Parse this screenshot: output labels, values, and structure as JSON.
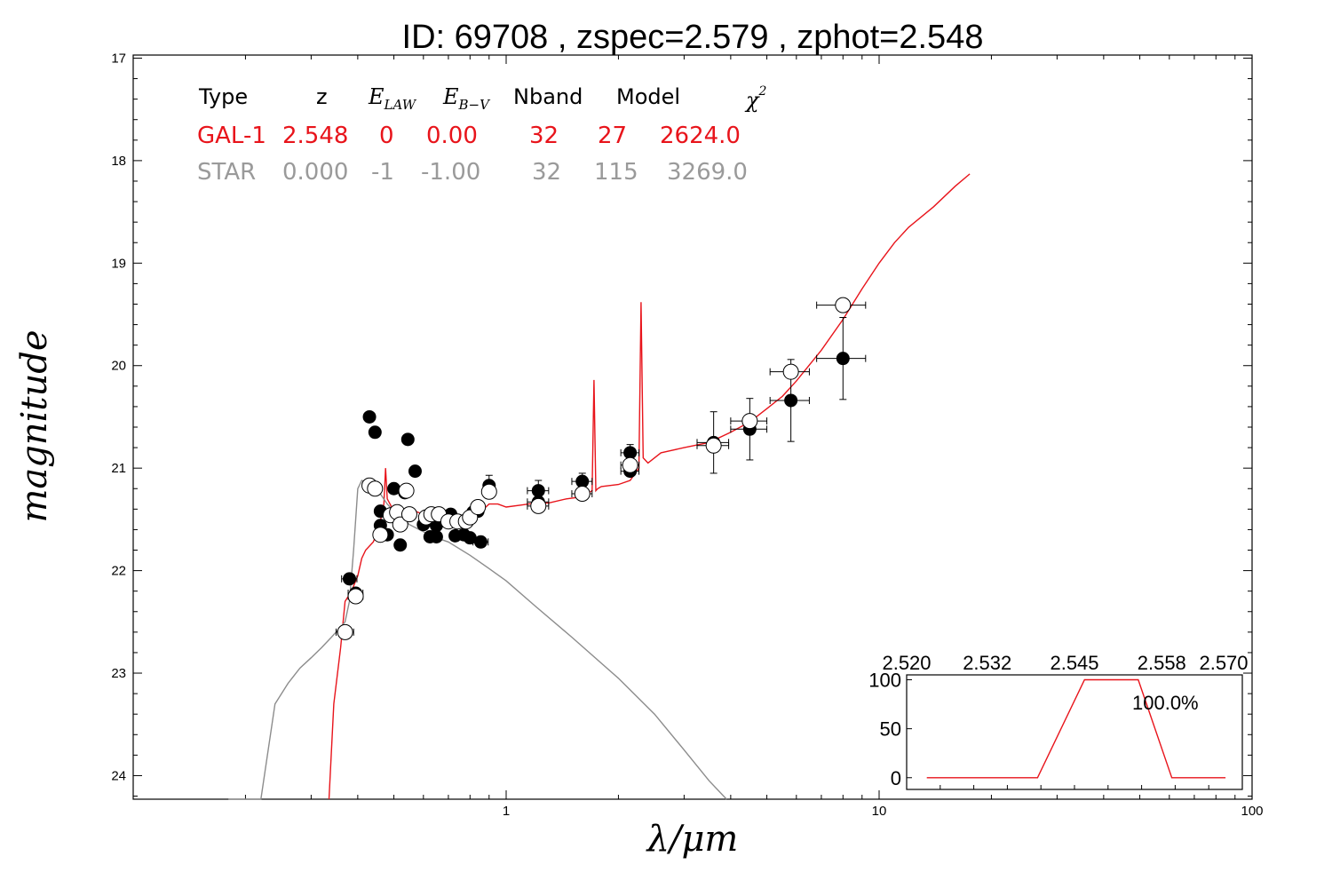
{
  "title": "ID:  69708 , zspec=2.579 , zphot=2.548",
  "colors": {
    "gal": "#e8141b",
    "star": "#8c8c8c",
    "text_gal": "#e8141b",
    "text_star": "#9a9a9a"
  },
  "chart_data": [
    {
      "type": "scatter",
      "xlabel": "λ/μm",
      "ylabel": "magnitude",
      "xscale": "log",
      "xlim": [
        0.1,
        100
      ],
      "ylim": [
        24.23,
        16.97
      ],
      "x_tick_labels": [
        "1",
        "10",
        "100"
      ],
      "y_tick_labels": [
        "17",
        "18",
        "19",
        "20",
        "21",
        "22",
        "23",
        "24"
      ],
      "x_tick_values": [
        1,
        10,
        100
      ],
      "y_tick_values": [
        17,
        18,
        19,
        20,
        21,
        22,
        23,
        24
      ],
      "grid": false,
      "summary_table": {
        "headers": [
          "Type",
          "z",
          "E_LAW",
          "E_B−V",
          "Nband",
          "Model",
          "χ²"
        ],
        "header_math": {
          "e_law_base": "E",
          "e_law_sub": "LAW",
          "ebv_base": "E",
          "ebv_sub": "B−V",
          "chi_base": "χ",
          "chi_sup": "2"
        },
        "rows": [
          {
            "name": "GAL-1",
            "z": "2.548",
            "elaw": "0",
            "ebv": "0.00",
            "nband": "32",
            "model": "27",
            "chi2": "2624.0"
          },
          {
            "name": "STAR",
            "z": "0.000",
            "elaw": "-1",
            "ebv": "-1.00",
            "nband": "32",
            "model": "115",
            "chi2": "3269.0"
          }
        ]
      },
      "series": [
        {
          "name": "GAL-1",
          "kind": "line",
          "color": "#e8141b",
          "x": [
            0.335,
            0.345,
            0.36,
            0.37,
            0.385,
            0.4,
            0.41,
            0.42,
            0.44,
            0.455,
            0.47,
            0.475,
            0.48,
            0.5,
            0.55,
            0.6,
            0.65,
            0.7,
            0.8,
            0.9,
            0.95,
            1.0,
            1.1,
            1.2,
            1.3,
            1.45,
            1.6,
            1.7,
            1.72,
            1.74,
            1.76,
            1.8,
            2.0,
            2.15,
            2.27,
            2.3,
            2.33,
            2.4,
            2.6,
            3.0,
            3.5,
            4.0,
            4.5,
            5.0,
            5.5,
            6.0,
            7.0,
            8.0,
            9.0,
            10.0,
            11.0,
            12.0,
            14.0,
            16.0,
            17.5
          ],
          "y": [
            24.23,
            23.3,
            22.75,
            22.3,
            22.2,
            22.05,
            21.88,
            21.8,
            21.72,
            21.6,
            21.35,
            21.0,
            21.3,
            21.42,
            21.4,
            21.45,
            21.48,
            21.5,
            21.52,
            21.35,
            21.35,
            21.38,
            21.36,
            21.34,
            21.34,
            21.3,
            21.28,
            21.22,
            20.14,
            21.22,
            21.2,
            21.18,
            21.16,
            21.12,
            21.0,
            19.38,
            20.9,
            20.95,
            20.85,
            20.8,
            20.75,
            20.65,
            20.55,
            20.42,
            20.3,
            20.15,
            19.85,
            19.55,
            19.25,
            19.0,
            18.8,
            18.65,
            18.45,
            18.25,
            18.13
          ]
        },
        {
          "name": "STAR",
          "kind": "line",
          "color": "#8c8c8c",
          "x": [
            0.18,
            0.19,
            0.2,
            0.22,
            0.24,
            0.26,
            0.28,
            0.3,
            0.32,
            0.34,
            0.36,
            0.37,
            0.38,
            0.39,
            0.4,
            0.41,
            0.43,
            0.45,
            0.48,
            0.5,
            0.55,
            0.6,
            0.65,
            0.7,
            0.8,
            0.9,
            1.0,
            1.2,
            1.5,
            2.0,
            2.5,
            3.0,
            3.5,
            3.9
          ],
          "y": [
            24.23,
            24.23,
            24.23,
            24.23,
            23.3,
            23.1,
            22.95,
            22.85,
            22.75,
            22.65,
            22.55,
            22.5,
            22.3,
            21.8,
            21.2,
            21.12,
            21.15,
            21.2,
            21.35,
            21.42,
            21.55,
            21.62,
            21.68,
            21.72,
            21.85,
            21.98,
            22.1,
            22.35,
            22.65,
            23.05,
            23.4,
            23.75,
            24.05,
            24.23
          ]
        },
        {
          "name": "observed",
          "kind": "points",
          "marker": "filled-circle",
          "color": "#000000",
          "points": [
            {
              "x": 0.38,
              "y": 22.08,
              "xerr": 0.018,
              "yerr": 0
            },
            {
              "x": 0.395,
              "y": 22.22,
              "xerr": 0.018,
              "yerr": 0
            },
            {
              "x": 0.43,
              "y": 20.5,
              "xerr": 0,
              "yerr": 0
            },
            {
              "x": 0.445,
              "y": 20.65,
              "xerr": 0,
              "yerr": 0
            },
            {
              "x": 0.46,
              "y": 21.42,
              "xerr": 0,
              "yerr": 0
            },
            {
              "x": 0.46,
              "y": 21.56,
              "xerr": 0,
              "yerr": 0
            },
            {
              "x": 0.48,
              "y": 21.65,
              "xerr": 0,
              "yerr": 0
            },
            {
              "x": 0.5,
              "y": 21.2,
              "xerr": 0,
              "yerr": 0
            },
            {
              "x": 0.52,
              "y": 21.75,
              "xerr": 0,
              "yerr": 0
            },
            {
              "x": 0.535,
              "y": 21.24,
              "xerr": 0,
              "yerr": 0
            },
            {
              "x": 0.545,
              "y": 20.72,
              "xerr": 0,
              "yerr": 0
            },
            {
              "x": 0.57,
              "y": 21.03,
              "xerr": 0,
              "yerr": 0
            },
            {
              "x": 0.6,
              "y": 21.55,
              "xerr": 0,
              "yerr": 0
            },
            {
              "x": 0.625,
              "y": 21.67,
              "xerr": 0,
              "yerr": 0
            },
            {
              "x": 0.65,
              "y": 21.67,
              "xerr": 0,
              "yerr": 0
            },
            {
              "x": 0.65,
              "y": 21.56,
              "xerr": 0,
              "yerr": 0
            },
            {
              "x": 0.675,
              "y": 21.47,
              "xerr": 0,
              "yerr": 0
            },
            {
              "x": 0.71,
              "y": 21.45,
              "xerr": 0,
              "yerr": 0
            },
            {
              "x": 0.73,
              "y": 21.66,
              "xerr": 0,
              "yerr": 0
            },
            {
              "x": 0.77,
              "y": 21.65,
              "xerr": 0,
              "yerr": 0
            },
            {
              "x": 0.8,
              "y": 21.68,
              "xerr": 0,
              "yerr": 0
            },
            {
              "x": 0.815,
              "y": 21.43,
              "xerr": 0,
              "yerr": 0
            },
            {
              "x": 0.84,
              "y": 21.42,
              "xerr": 0,
              "yerr": 0
            },
            {
              "x": 0.855,
              "y": 21.72,
              "xerr": 0.04,
              "yerr": 0
            },
            {
              "x": 0.9,
              "y": 21.17,
              "xerr": 0.03,
              "yerr": 0.1
            },
            {
              "x": 1.22,
              "y": 21.22,
              "xerr": 0.08,
              "yerr": 0.1
            },
            {
              "x": 1.22,
              "y": 21.33,
              "xerr": 0.08,
              "yerr": 0
            },
            {
              "x": 1.6,
              "y": 21.13,
              "xerr": 0.1,
              "yerr": 0.08
            },
            {
              "x": 2.15,
              "y": 20.85,
              "xerr": 0.12,
              "yerr": 0.08
            },
            {
              "x": 2.15,
              "y": 21.03,
              "xerr": 0.12,
              "yerr": 0
            },
            {
              "x": 3.6,
              "y": 20.75,
              "xerr": 0.35,
              "yerr": 0.3
            },
            {
              "x": 4.5,
              "y": 20.62,
              "xerr": 0.5,
              "yerr": 0.3
            },
            {
              "x": 5.8,
              "y": 20.34,
              "xerr": 0.7,
              "yerr": 0.4
            },
            {
              "x": 8.0,
              "y": 19.93,
              "xerr": 1.2,
              "yerr": 0.4
            }
          ]
        },
        {
          "name": "model",
          "kind": "points",
          "marker": "open-circle",
          "color": "#000000",
          "points": [
            {
              "x": 0.37,
              "y": 22.6,
              "xerr": 0.02
            },
            {
              "x": 0.395,
              "y": 22.25,
              "xerr": 0.018
            },
            {
              "x": 0.43,
              "y": 21.17,
              "xerr": 0
            },
            {
              "x": 0.445,
              "y": 21.2,
              "xerr": 0
            },
            {
              "x": 0.46,
              "y": 21.65,
              "xerr": 0
            },
            {
              "x": 0.49,
              "y": 21.46,
              "xerr": 0
            },
            {
              "x": 0.51,
              "y": 21.43,
              "xerr": 0
            },
            {
              "x": 0.52,
              "y": 21.55,
              "xerr": 0
            },
            {
              "x": 0.54,
              "y": 21.22,
              "xerr": 0
            },
            {
              "x": 0.55,
              "y": 21.45,
              "xerr": 0
            },
            {
              "x": 0.61,
              "y": 21.48,
              "xerr": 0
            },
            {
              "x": 0.63,
              "y": 21.45,
              "xerr": 0
            },
            {
              "x": 0.66,
              "y": 21.45,
              "xerr": 0
            },
            {
              "x": 0.7,
              "y": 21.52,
              "xerr": 0
            },
            {
              "x": 0.74,
              "y": 21.52,
              "xerr": 0
            },
            {
              "x": 0.78,
              "y": 21.52,
              "xerr": 0
            },
            {
              "x": 0.8,
              "y": 21.48,
              "xerr": 0
            },
            {
              "x": 0.84,
              "y": 21.38,
              "xerr": 0
            },
            {
              "x": 0.9,
              "y": 21.23,
              "xerr": 0.03
            },
            {
              "x": 1.22,
              "y": 21.37,
              "xerr": 0.08
            },
            {
              "x": 1.6,
              "y": 21.25,
              "xerr": 0.1
            },
            {
              "x": 2.15,
              "y": 20.97,
              "xerr": 0.12
            },
            {
              "x": 3.6,
              "y": 20.78,
              "xerr": 0.35
            },
            {
              "x": 4.5,
              "y": 20.54,
              "xerr": 0.5
            },
            {
              "x": 5.8,
              "y": 20.06,
              "xerr": 0.7
            },
            {
              "x": 8.0,
              "y": 19.41,
              "xerr": 1.2
            }
          ]
        }
      ]
    },
    {
      "type": "line",
      "role": "inset-redshift-pdf",
      "x_tick_labels": [
        "2.520",
        "2.532",
        "2.545",
        "2.558",
        "2.570"
      ],
      "y_tick_labels": [
        "100",
        "50",
        "0"
      ],
      "xlim": [
        2.52,
        2.57
      ],
      "ylim": [
        -12,
        105
      ],
      "annotation": "100.0%",
      "series": [
        {
          "name": "P(z)",
          "color": "#e8141b",
          "x": [
            2.523,
            2.533,
            2.5395,
            2.5465,
            2.5545,
            2.5595,
            2.5675
          ],
          "y": [
            0,
            0,
            0,
            100,
            100,
            0,
            0
          ]
        }
      ]
    }
  ]
}
